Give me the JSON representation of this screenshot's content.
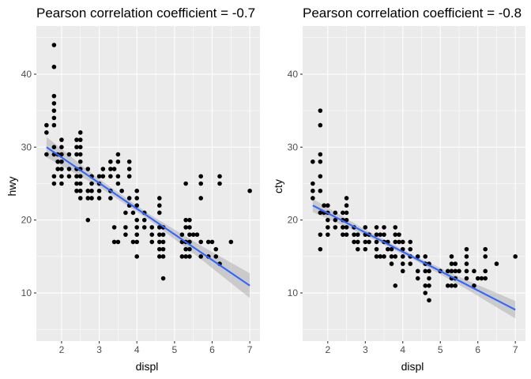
{
  "chart_data": [
    {
      "type": "scatter",
      "title": "Pearson correlation coefficient = -0.7",
      "xlabel": "displ",
      "ylabel": "hwy",
      "xlim": [
        1.33,
        7.27
      ],
      "ylim": [
        3.4,
        46.6
      ],
      "xticks": [
        2,
        3,
        4,
        5,
        6,
        7
      ],
      "yticks": [
        10,
        20,
        30,
        40
      ],
      "grid": true,
      "trend": {
        "method": "linear",
        "x": [
          1.6,
          7.0
        ],
        "y": [
          30.0,
          11.0
        ],
        "ci_halfwidth": [
          1.4,
          0.55,
          0.4,
          0.9,
          1.7
        ]
      },
      "points": [
        [
          1.6,
          33
        ],
        [
          1.6,
          32
        ],
        [
          1.6,
          29
        ],
        [
          1.8,
          44
        ],
        [
          1.8,
          41
        ],
        [
          1.8,
          37
        ],
        [
          1.8,
          36
        ],
        [
          1.8,
          35
        ],
        [
          1.8,
          34
        ],
        [
          1.8,
          33
        ],
        [
          1.8,
          30
        ],
        [
          1.8,
          29
        ],
        [
          1.8,
          26
        ],
        [
          1.8,
          25
        ],
        [
          1.9,
          29
        ],
        [
          1.9,
          28
        ],
        [
          1.9,
          27
        ],
        [
          2.0,
          31
        ],
        [
          2.0,
          30
        ],
        [
          2.0,
          29
        ],
        [
          2.0,
          28
        ],
        [
          2.0,
          27
        ],
        [
          2.0,
          26
        ],
        [
          2.0,
          25
        ],
        [
          2.2,
          29
        ],
        [
          2.2,
          27
        ],
        [
          2.2,
          26
        ],
        [
          2.4,
          31
        ],
        [
          2.4,
          30
        ],
        [
          2.4,
          29
        ],
        [
          2.4,
          27
        ],
        [
          2.4,
          26
        ],
        [
          2.4,
          25
        ],
        [
          2.4,
          24
        ],
        [
          2.5,
          32
        ],
        [
          2.5,
          31
        ],
        [
          2.5,
          30
        ],
        [
          2.5,
          29
        ],
        [
          2.5,
          28
        ],
        [
          2.5,
          27
        ],
        [
          2.5,
          26
        ],
        [
          2.5,
          25
        ],
        [
          2.5,
          24
        ],
        [
          2.5,
          23
        ],
        [
          2.7,
          27
        ],
        [
          2.7,
          24
        ],
        [
          2.7,
          23
        ],
        [
          2.7,
          20
        ],
        [
          2.8,
          26
        ],
        [
          2.8,
          25
        ],
        [
          2.8,
          24
        ],
        [
          2.8,
          23
        ],
        [
          3.0,
          26
        ],
        [
          3.0,
          25
        ],
        [
          3.0,
          24
        ],
        [
          3.0,
          23
        ],
        [
          3.1,
          27
        ],
        [
          3.1,
          26
        ],
        [
          3.3,
          28
        ],
        [
          3.3,
          27
        ],
        [
          3.3,
          26
        ],
        [
          3.3,
          24
        ],
        [
          3.3,
          23
        ],
        [
          3.4,
          27
        ],
        [
          3.4,
          19
        ],
        [
          3.4,
          17
        ],
        [
          3.5,
          29
        ],
        [
          3.5,
          28
        ],
        [
          3.5,
          26
        ],
        [
          3.5,
          25
        ],
        [
          3.5,
          17
        ],
        [
          3.6,
          24
        ],
        [
          3.7,
          21
        ],
        [
          3.7,
          19
        ],
        [
          3.7,
          18
        ],
        [
          3.8,
          28
        ],
        [
          3.8,
          27
        ],
        [
          3.8,
          26
        ],
        [
          3.8,
          23
        ],
        [
          3.8,
          22
        ],
        [
          3.9,
          21
        ],
        [
          3.9,
          17
        ],
        [
          4.0,
          24
        ],
        [
          4.0,
          23
        ],
        [
          4.0,
          22
        ],
        [
          4.0,
          20
        ],
        [
          4.0,
          19
        ],
        [
          4.0,
          18
        ],
        [
          4.0,
          17
        ],
        [
          4.0,
          15
        ],
        [
          4.2,
          21
        ],
        [
          4.2,
          20
        ],
        [
          4.2,
          19
        ],
        [
          4.4,
          19
        ],
        [
          4.4,
          18
        ],
        [
          4.4,
          17
        ],
        [
          4.6,
          23
        ],
        [
          4.6,
          22
        ],
        [
          4.6,
          21
        ],
        [
          4.6,
          19
        ],
        [
          4.6,
          18
        ],
        [
          4.6,
          17
        ],
        [
          4.6,
          16
        ],
        [
          4.6,
          15
        ],
        [
          4.7,
          19
        ],
        [
          4.7,
          18
        ],
        [
          4.7,
          17
        ],
        [
          4.7,
          16
        ],
        [
          4.7,
          15
        ],
        [
          4.7,
          12
        ],
        [
          5.2,
          18
        ],
        [
          5.2,
          17
        ],
        [
          5.2,
          15
        ],
        [
          5.3,
          25
        ],
        [
          5.3,
          20
        ],
        [
          5.3,
          19
        ],
        [
          5.3,
          17
        ],
        [
          5.3,
          16
        ],
        [
          5.3,
          15
        ],
        [
          5.4,
          20
        ],
        [
          5.4,
          19
        ],
        [
          5.4,
          18
        ],
        [
          5.4,
          17
        ],
        [
          5.4,
          16
        ],
        [
          5.4,
          15
        ],
        [
          5.5,
          18
        ],
        [
          5.6,
          18
        ],
        [
          5.7,
          26
        ],
        [
          5.7,
          25
        ],
        [
          5.7,
          23
        ],
        [
          5.7,
          17
        ],
        [
          5.7,
          15
        ],
        [
          5.9,
          17
        ],
        [
          5.9,
          15
        ],
        [
          6.0,
          17
        ],
        [
          6.1,
          16
        ],
        [
          6.1,
          15
        ],
        [
          6.2,
          26
        ],
        [
          6.2,
          25
        ],
        [
          6.2,
          14
        ],
        [
          6.5,
          17
        ],
        [
          7.0,
          24
        ]
      ]
    },
    {
      "type": "scatter",
      "title": "Pearson correlation coefficient = -0.8",
      "xlabel": "displ",
      "ylabel": "cty",
      "xlim": [
        1.33,
        7.27
      ],
      "ylim": [
        3.4,
        46.6
      ],
      "xticks": [
        2,
        3,
        4,
        5,
        6,
        7
      ],
      "yticks": [
        10,
        20,
        30,
        40
      ],
      "grid": true,
      "trend": {
        "method": "linear",
        "x": [
          1.6,
          7.0
        ],
        "y": [
          22.0,
          7.7
        ],
        "ci_halfwidth": [
          0.9,
          0.4,
          0.3,
          0.6,
          1.2
        ]
      },
      "points": [
        [
          1.6,
          28
        ],
        [
          1.6,
          25
        ],
        [
          1.6,
          24
        ],
        [
          1.6,
          23
        ],
        [
          1.8,
          35
        ],
        [
          1.8,
          33
        ],
        [
          1.8,
          29
        ],
        [
          1.8,
          28
        ],
        [
          1.8,
          26
        ],
        [
          1.8,
          24
        ],
        [
          1.8,
          21
        ],
        [
          1.8,
          18
        ],
        [
          1.8,
          16
        ],
        [
          1.9,
          22
        ],
        [
          1.9,
          21
        ],
        [
          2.0,
          22
        ],
        [
          2.0,
          21
        ],
        [
          2.0,
          20
        ],
        [
          2.0,
          19
        ],
        [
          2.0,
          18
        ],
        [
          2.2,
          21
        ],
        [
          2.2,
          20
        ],
        [
          2.2,
          19
        ],
        [
          2.4,
          21
        ],
        [
          2.4,
          20
        ],
        [
          2.4,
          19
        ],
        [
          2.4,
          18
        ],
        [
          2.5,
          23
        ],
        [
          2.5,
          22
        ],
        [
          2.5,
          21
        ],
        [
          2.5,
          20
        ],
        [
          2.5,
          19
        ],
        [
          2.5,
          18
        ],
        [
          2.7,
          19
        ],
        [
          2.7,
          18
        ],
        [
          2.7,
          17
        ],
        [
          2.8,
          18
        ],
        [
          2.8,
          17
        ],
        [
          2.8,
          16
        ],
        [
          3.0,
          19
        ],
        [
          3.0,
          18
        ],
        [
          3.0,
          17
        ],
        [
          3.0,
          16
        ],
        [
          3.1,
          18
        ],
        [
          3.1,
          17
        ],
        [
          3.3,
          19
        ],
        [
          3.3,
          18
        ],
        [
          3.3,
          17
        ],
        [
          3.3,
          16
        ],
        [
          3.3,
          15
        ],
        [
          3.4,
          18
        ],
        [
          3.4,
          15
        ],
        [
          3.5,
          19
        ],
        [
          3.5,
          18
        ],
        [
          3.5,
          17
        ],
        [
          3.5,
          15
        ],
        [
          3.6,
          17
        ],
        [
          3.6,
          16
        ],
        [
          3.7,
          16
        ],
        [
          3.7,
          15
        ],
        [
          3.7,
          14
        ],
        [
          3.8,
          19
        ],
        [
          3.8,
          18
        ],
        [
          3.8,
          17
        ],
        [
          3.8,
          15
        ],
        [
          3.8,
          11
        ],
        [
          3.9,
          18
        ],
        [
          3.9,
          17
        ],
        [
          4.0,
          17
        ],
        [
          4.0,
          16
        ],
        [
          4.0,
          15
        ],
        [
          4.0,
          14
        ],
        [
          4.0,
          13
        ],
        [
          4.2,
          17
        ],
        [
          4.2,
          16
        ],
        [
          4.2,
          15
        ],
        [
          4.2,
          14
        ],
        [
          4.4,
          15
        ],
        [
          4.4,
          13
        ],
        [
          4.4,
          12
        ],
        [
          4.6,
          15
        ],
        [
          4.6,
          14
        ],
        [
          4.6,
          13
        ],
        [
          4.6,
          11
        ],
        [
          4.6,
          10
        ],
        [
          4.7,
          14
        ],
        [
          4.7,
          13
        ],
        [
          4.7,
          12
        ],
        [
          4.7,
          11
        ],
        [
          4.7,
          9
        ],
        [
          5.0,
          13
        ],
        [
          5.2,
          13
        ],
        [
          5.2,
          11
        ],
        [
          5.3,
          15
        ],
        [
          5.3,
          14
        ],
        [
          5.3,
          13
        ],
        [
          5.3,
          12
        ],
        [
          5.3,
          11
        ],
        [
          5.4,
          14
        ],
        [
          5.4,
          13
        ],
        [
          5.4,
          12
        ],
        [
          5.4,
          11
        ],
        [
          5.5,
          13
        ],
        [
          5.7,
          16
        ],
        [
          5.7,
          15
        ],
        [
          5.7,
          14
        ],
        [
          5.7,
          13
        ],
        [
          5.7,
          12
        ],
        [
          5.9,
          13
        ],
        [
          5.9,
          11
        ],
        [
          6.0,
          12
        ],
        [
          6.1,
          12
        ],
        [
          6.2,
          16
        ],
        [
          6.2,
          15
        ],
        [
          6.2,
          13
        ],
        [
          6.2,
          12
        ],
        [
          6.5,
          14
        ],
        [
          7.0,
          15
        ]
      ]
    }
  ]
}
